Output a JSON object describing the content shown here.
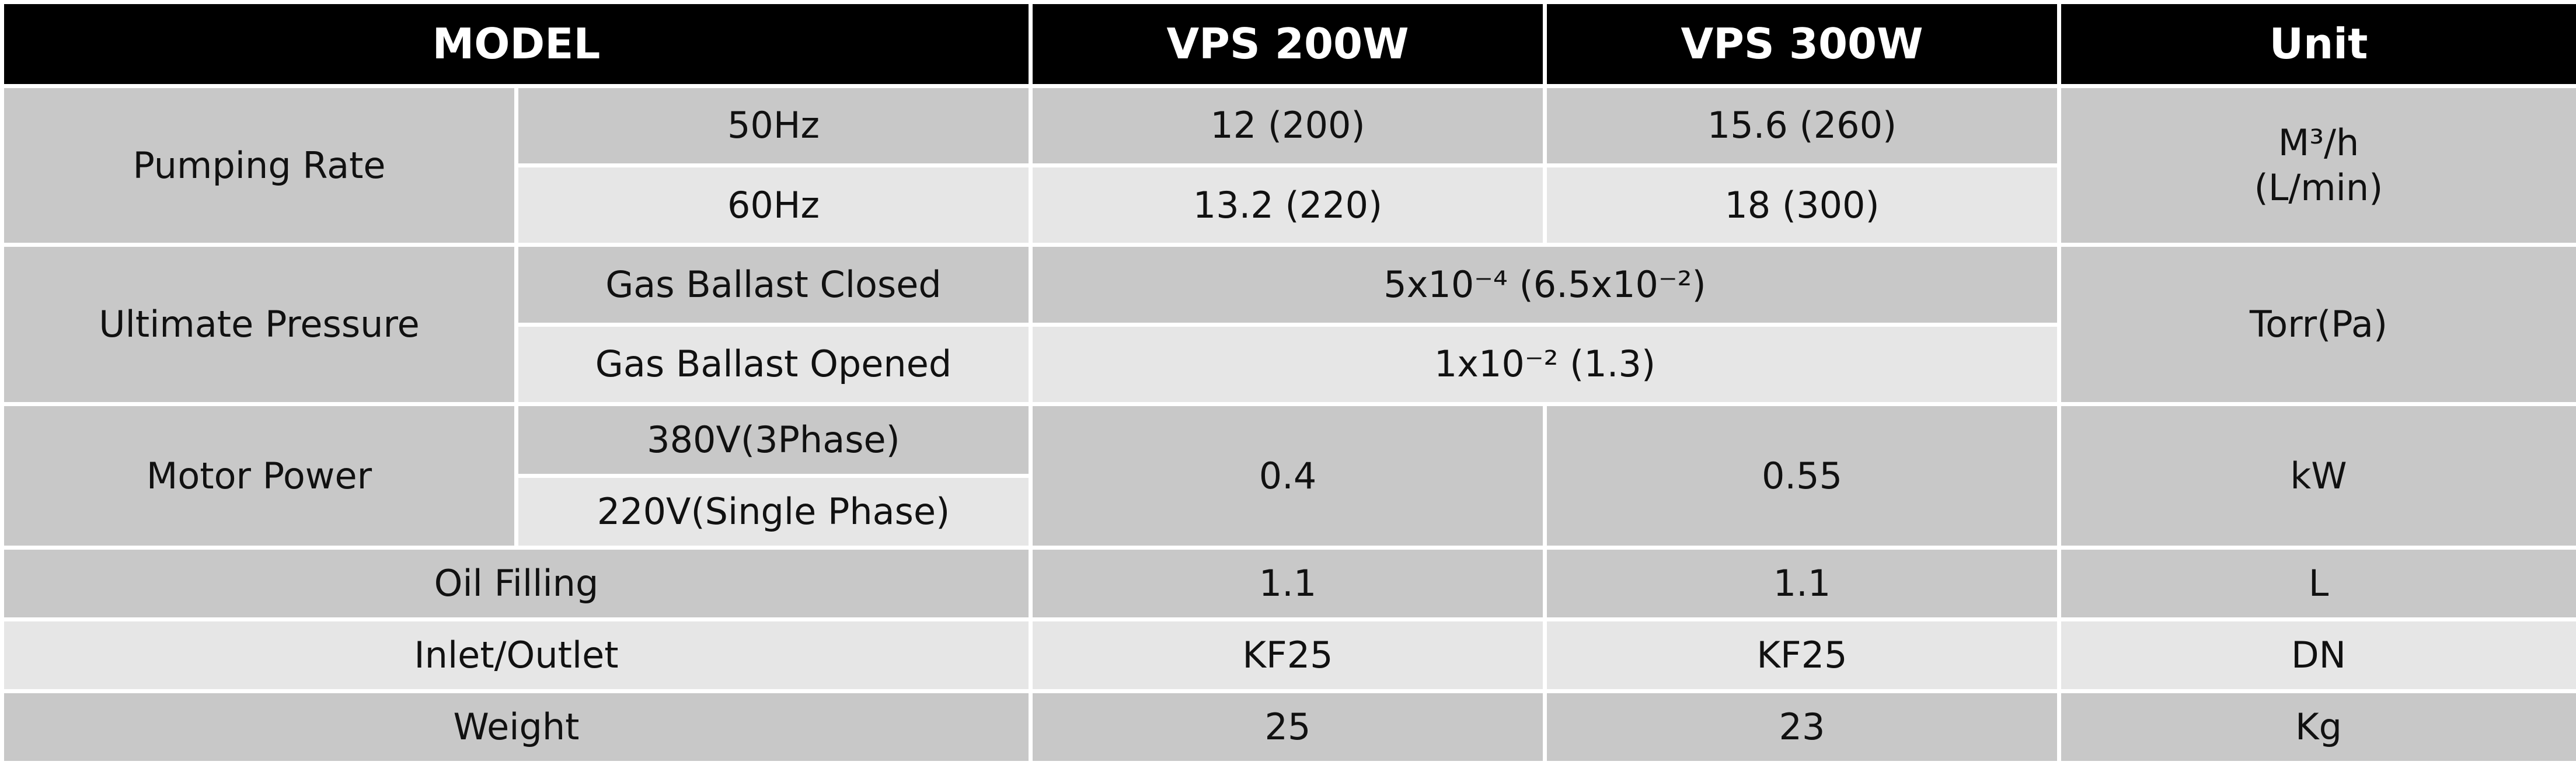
{
  "table": {
    "header": [
      "MODEL",
      "VPS 200W",
      "VPS 300W",
      "Unit"
    ],
    "pumping_rate": {
      "label": "Pumping Rate",
      "unit": [
        "M³/h",
        "(L/min)"
      ],
      "rows": [
        [
          "50Hz",
          "12 (200)",
          "15.6 (260)"
        ],
        [
          "60Hz",
          "13.2 (220)",
          "18 (300)"
        ]
      ]
    },
    "ultimate_pressure": {
      "label": "Ultimate Pressure",
      "unit": "Torr(Pa)",
      "rows": [
        [
          "Gas Ballast Closed",
          "5x10⁻⁴ (6.5x10⁻²)"
        ],
        [
          "Gas Ballast Opened",
          "1x10⁻² (1.3)"
        ]
      ]
    },
    "motor_power": {
      "label": "Motor Power",
      "conditions": [
        "380V(3Phase)",
        "220V(Single Phase)"
      ],
      "values": [
        "0.4",
        "0.55"
      ],
      "unit": "kW"
    },
    "rows": [
      [
        "Oil Filling",
        "1.1",
        "1.1",
        "L"
      ],
      [
        "Inlet/Outlet",
        "KF25",
        "KF25",
        "DN"
      ],
      [
        "Weight",
        "25",
        "23",
        "Kg"
      ]
    ]
  }
}
